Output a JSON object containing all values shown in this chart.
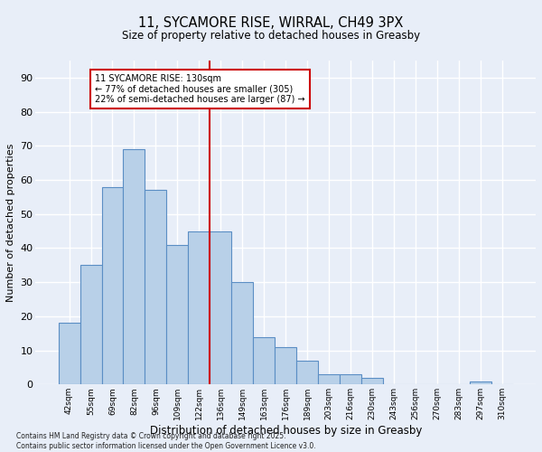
{
  "title": "11, SYCAMORE RISE, WIRRAL, CH49 3PX",
  "subtitle": "Size of property relative to detached houses in Greasby",
  "xlabel": "Distribution of detached houses by size in Greasby",
  "ylabel": "Number of detached properties",
  "categories": [
    "42sqm",
    "55sqm",
    "69sqm",
    "82sqm",
    "96sqm",
    "109sqm",
    "122sqm",
    "136sqm",
    "149sqm",
    "163sqm",
    "176sqm",
    "189sqm",
    "203sqm",
    "216sqm",
    "230sqm",
    "243sqm",
    "256sqm",
    "270sqm",
    "283sqm",
    "297sqm",
    "310sqm"
  ],
  "values": [
    18,
    35,
    58,
    69,
    57,
    41,
    45,
    45,
    30,
    14,
    11,
    7,
    3,
    3,
    2,
    0,
    0,
    0,
    0,
    1,
    0
  ],
  "bar_color": "#b8d0e8",
  "bar_edge_color": "#5b8ec4",
  "background_color": "#e8eef8",
  "grid_color": "#ffffff",
  "vline_color": "#cc0000",
  "annotation_text": "11 SYCAMORE RISE: 130sqm\n← 77% of detached houses are smaller (305)\n22% of semi-detached houses are larger (87) →",
  "annotation_box_color": "#ffffff",
  "annotation_box_edge_color": "#cc0000",
  "footer": "Contains HM Land Registry data © Crown copyright and database right 2025.\nContains public sector information licensed under the Open Government Licence v3.0.",
  "ylim": [
    0,
    95
  ],
  "yticks": [
    0,
    10,
    20,
    30,
    40,
    50,
    60,
    70,
    80,
    90
  ]
}
